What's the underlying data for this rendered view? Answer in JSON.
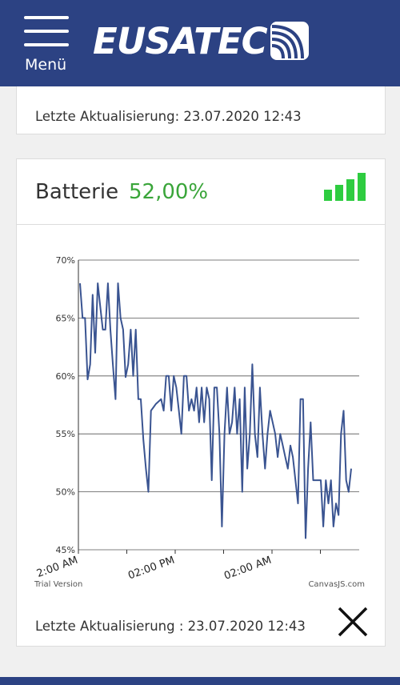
{
  "header": {
    "menu_label": "Menü",
    "logo_text": "EUSATEC",
    "background": "#2c4283"
  },
  "top_card": {
    "updated": "Letzte Aktualisierung: 23.07.2020 12:43"
  },
  "battery_card": {
    "title": "Batterie",
    "value": "52,00%",
    "value_color": "#3aa53a",
    "signal_icon": "signal-bars-icon",
    "signal_color": "#2ecc40",
    "signal_level": 1.0,
    "updated": "Letzte Aktualisierung : 23.07.2020 12:43",
    "close_icon": "close-icon"
  },
  "chart_data": {
    "type": "line",
    "title": "",
    "xlabel": "",
    "ylabel": "",
    "ylim": [
      45,
      70
    ],
    "yticks": [
      "45%",
      "50%",
      "55%",
      "60%",
      "65%",
      "70%"
    ],
    "xticks": [
      "2:00 AM",
      "02:00 PM",
      "02:00 AM"
    ],
    "grid": true,
    "line_color": "#3a5491",
    "watermark_left": "Trial Version",
    "watermark_right": "CanvasJS.com",
    "series": [
      {
        "values": [
          68,
          65,
          65,
          59.7,
          61,
          67,
          62,
          68,
          66,
          64,
          64,
          68,
          64,
          60.9,
          58,
          68,
          65,
          64,
          59.9,
          61,
          64,
          60,
          64,
          58,
          58,
          54.5,
          52,
          50,
          57,
          57.3,
          57.6,
          57.8,
          58,
          57,
          60,
          60,
          57,
          60,
          59,
          57,
          55,
          60,
          60,
          57,
          58,
          57,
          59,
          56,
          59,
          56,
          59,
          58,
          51,
          59,
          59,
          55,
          47,
          55,
          59,
          55,
          56,
          59,
          55,
          58,
          50,
          59,
          52,
          55,
          61,
          55,
          53,
          59,
          55,
          52,
          55,
          57,
          56,
          55,
          53,
          55,
          54,
          53,
          52,
          54,
          53,
          51,
          49,
          58,
          58,
          46,
          52,
          56,
          51,
          51,
          51,
          51,
          47,
          51,
          49,
          51,
          47,
          49,
          48,
          55,
          57,
          51,
          50,
          52
        ]
      }
    ]
  }
}
